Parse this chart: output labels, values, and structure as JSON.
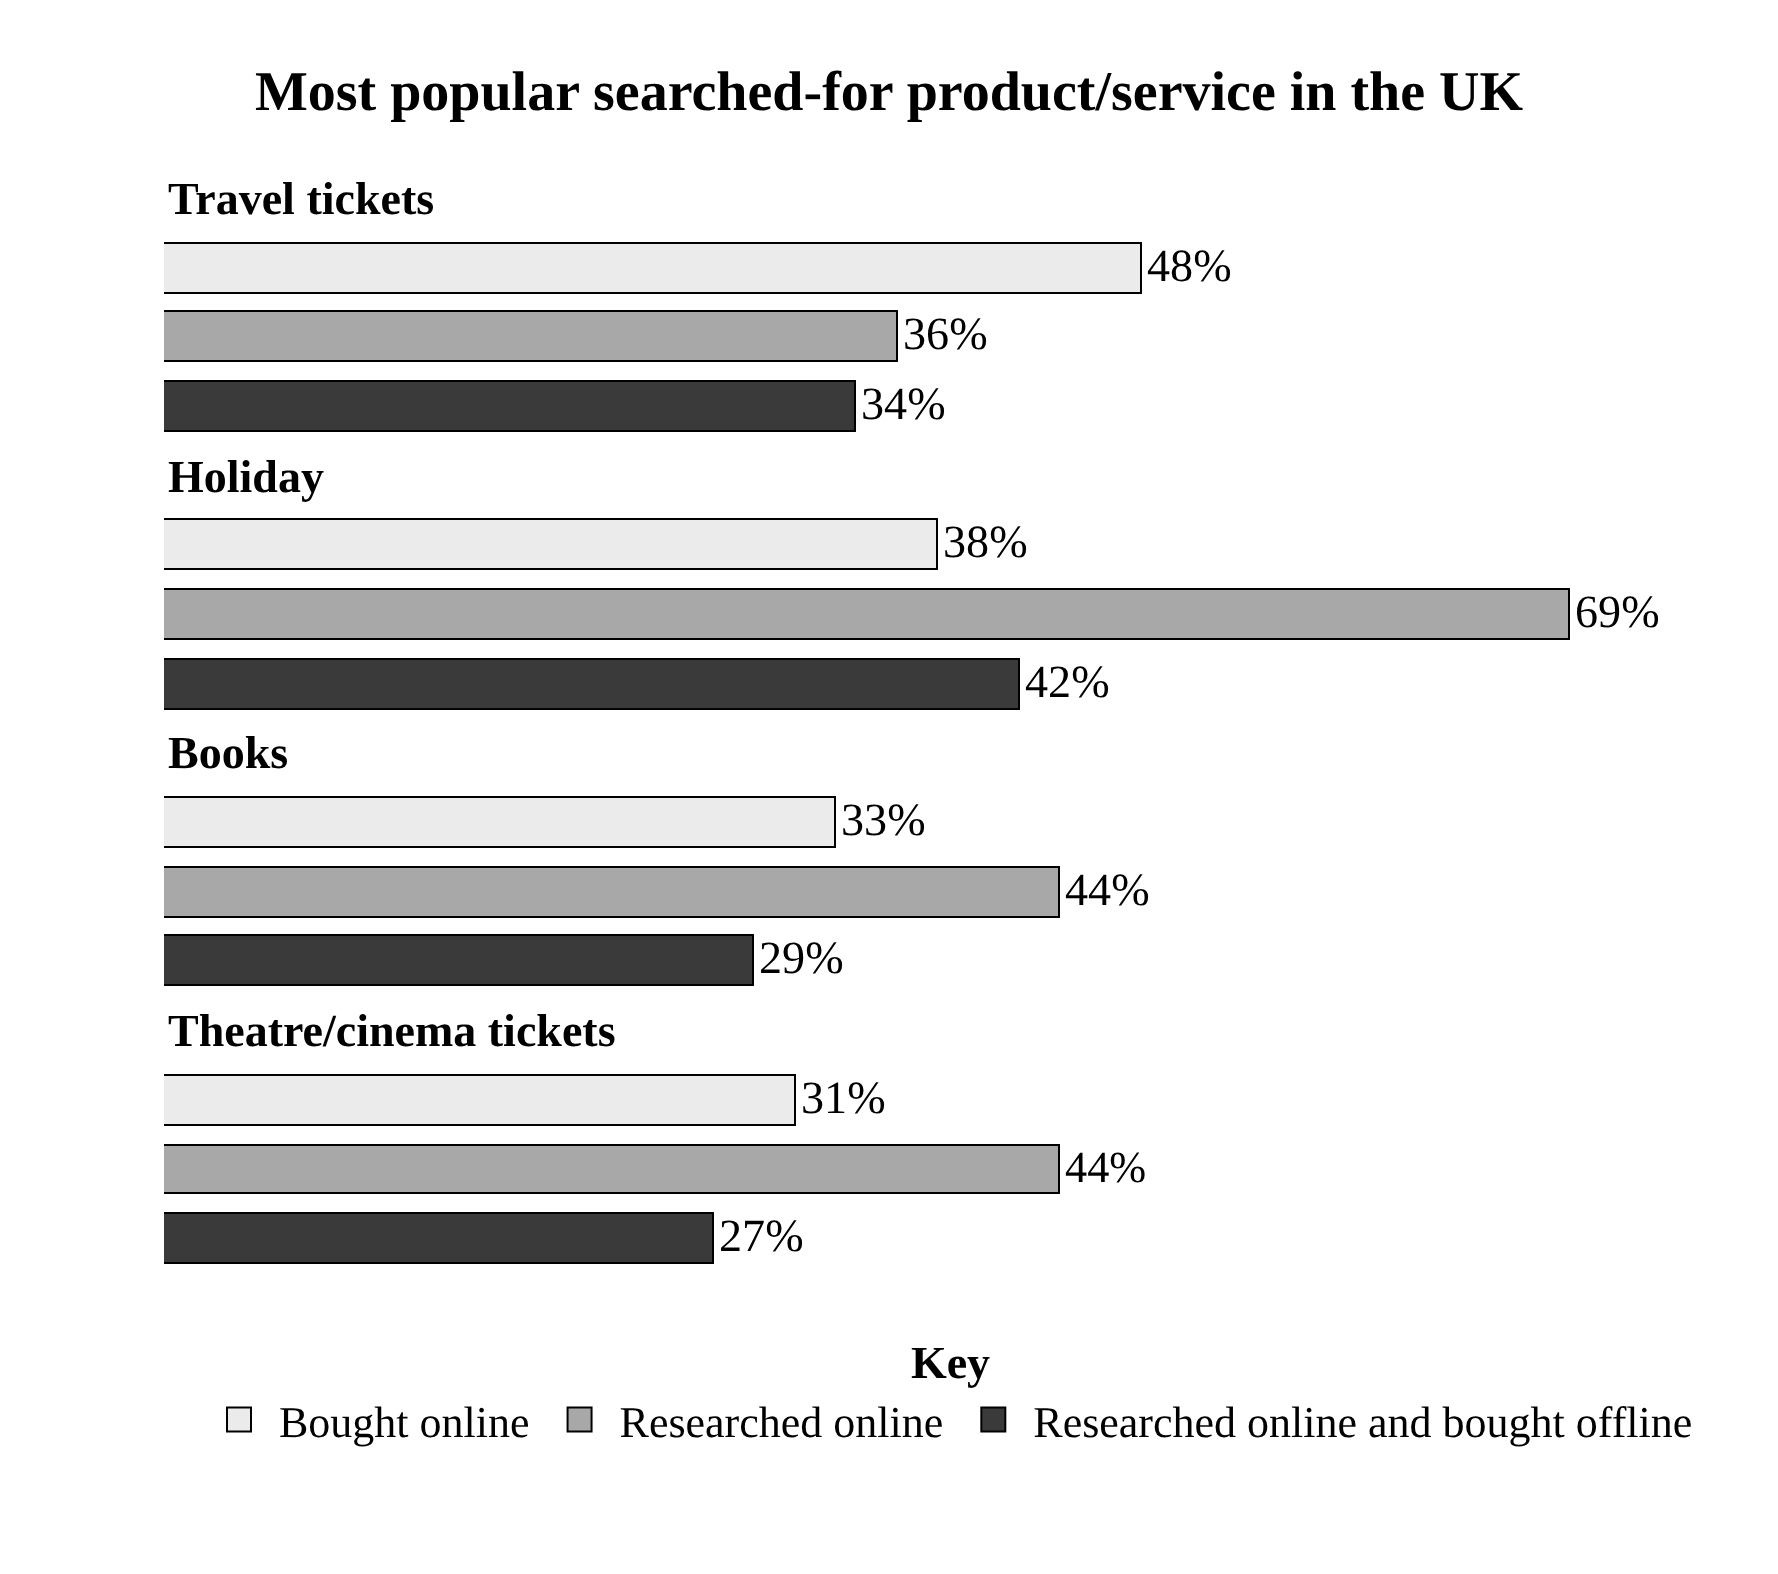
{
  "chart_data": {
    "type": "bar",
    "orientation": "horizontal",
    "title": "Most popular searched-for product/service in the UK",
    "legend_title": "Key",
    "legend": "bottom",
    "categories": [
      "Travel tickets",
      "Holiday",
      "Books",
      "Theatre/cinema tickets"
    ],
    "series": [
      {
        "name": "Bought online",
        "color": "#ebebeb",
        "values": [
          48,
          38,
          33,
          31
        ],
        "value_labels": [
          "48%",
          "38%",
          "33%",
          "31%"
        ]
      },
      {
        "name": "Researched online",
        "color": "#a8a8a8",
        "values": [
          36,
          69,
          44,
          44
        ],
        "value_labels": [
          "36%",
          "69%",
          "44%",
          "44%"
        ]
      },
      {
        "name": "Researched online and bought offline",
        "color": "#3a3a3a",
        "values": [
          34,
          42,
          29,
          27
        ],
        "value_labels": [
          "34%",
          "42%",
          "29%",
          "27%"
        ]
      }
    ]
  }
}
